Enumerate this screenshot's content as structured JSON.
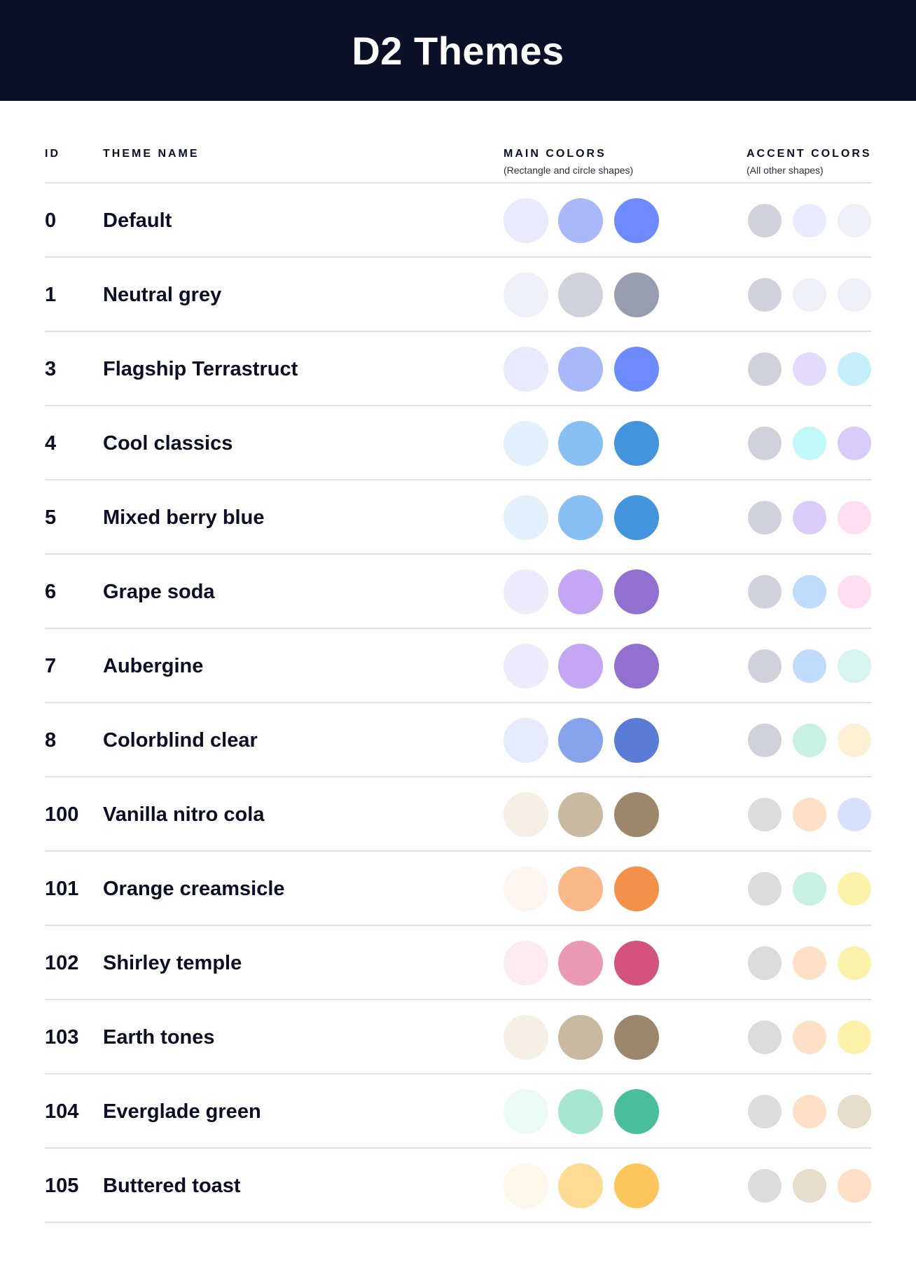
{
  "title": "D2 Themes",
  "columns": {
    "id": "ID",
    "name": "THEME NAME",
    "main": "MAIN COLORS",
    "main_sub": "(Rectangle and circle shapes)",
    "accent": "ACCENT COLORS",
    "accent_sub": "(All other shapes)"
  },
  "themes": [
    {
      "id": "0",
      "name": "Default",
      "main": [
        "#E8EAFD",
        "#A9B8F8",
        "#6D8BFD"
      ],
      "accent": [
        "#CFD2DD",
        "#E8EAFD",
        "#EEF1F8"
      ]
    },
    {
      "id": "1",
      "name": "Neutral grey",
      "main": [
        "#EEF1F8",
        "#CFD2DD",
        "#969DB0"
      ],
      "accent": [
        "#CFD2DD",
        "#EEF1F8",
        "#EEF1F8"
      ]
    },
    {
      "id": "3",
      "name": "Flagship Terrastruct",
      "main": [
        "#E8EAFD",
        "#A9B8F8",
        "#6D8BFD"
      ],
      "accent": [
        "#CFD2DD",
        "#E4DBFE",
        "#C5EEFB"
      ]
    },
    {
      "id": "4",
      "name": "Cool classics",
      "main": [
        "#E3F1FD",
        "#88BFF3",
        "#4393DD"
      ],
      "accent": [
        "#CFD2DD",
        "#C1F8F8",
        "#D9CCFA"
      ]
    },
    {
      "id": "5",
      "name": "Mixed berry blue",
      "main": [
        "#E3F1FD",
        "#88BFF3",
        "#4393DD"
      ],
      "accent": [
        "#CFD2DD",
        "#D9CCFA",
        "#FFDEF1"
      ]
    },
    {
      "id": "6",
      "name": "Grape soda",
      "main": [
        "#EFEBFD",
        "#C3A6F4",
        "#9270D0"
      ],
      "accent": [
        "#CFD2DD",
        "#BFDBFD",
        "#FFDEF1"
      ]
    },
    {
      "id": "7",
      "name": "Aubergine",
      "main": [
        "#EFEBFD",
        "#C3A6F4",
        "#9270D0"
      ],
      "accent": [
        "#CFD2DD",
        "#BFDBFD",
        "#D6F4F0"
      ]
    },
    {
      "id": "8",
      "name": "Colorblind clear",
      "main": [
        "#E6EBFD",
        "#87A3EC",
        "#5A7BD6"
      ],
      "accent": [
        "#CFD2DD",
        "#C8F0E3",
        "#FEF0D4"
      ]
    },
    {
      "id": "100",
      "name": "Vanilla nitro cola",
      "main": [
        "#F6EFE5",
        "#C8B9A0",
        "#9C876C"
      ],
      "accent": [
        "#DEDCDA",
        "#FEE0C7",
        "#D6E1FD"
      ]
    },
    {
      "id": "101",
      "name": "Orange creamsicle",
      "main": [
        "#FFF5F0",
        "#FBB989",
        "#F3914A"
      ],
      "accent": [
        "#DEDCDA",
        "#C8F0E3",
        "#FDF2AA"
      ]
    },
    {
      "id": "102",
      "name": "Shirley temple",
      "main": [
        "#FCEBF1",
        "#EA99B5",
        "#D3527E"
      ],
      "accent": [
        "#DEDCDA",
        "#FEE0C7",
        "#FDF2AA"
      ]
    },
    {
      "id": "103",
      "name": "Earth tones",
      "main": [
        "#F6EFE5",
        "#C8B9A0",
        "#9C876C"
      ],
      "accent": [
        "#DEDCDA",
        "#FEE0C7",
        "#FDF2AA"
      ]
    },
    {
      "id": "104",
      "name": "Everglade green",
      "main": [
        "#E9FBF4",
        "#A5E5D1",
        "#48BE9B"
      ],
      "accent": [
        "#DEDCDA",
        "#FEE0C7",
        "#E7DBCA"
      ]
    },
    {
      "id": "105",
      "name": "Buttered toast",
      "main": [
        "#FFF7E8",
        "#FFDA91",
        "#FDC65C"
      ],
      "accent": [
        "#DEDCDA",
        "#E7DBCA",
        "#FEE0C7"
      ]
    }
  ]
}
